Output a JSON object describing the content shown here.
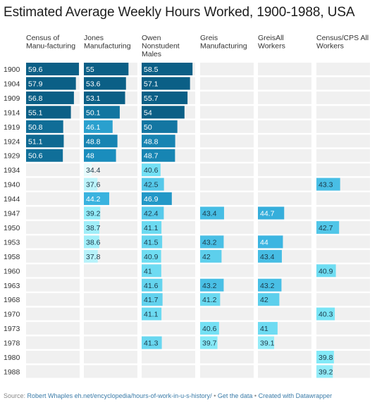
{
  "title": "Estimated Average Weekly Hours Worked, 1900-1988, USA",
  "footer": {
    "source_label": "Source:",
    "source_text": "Robert Whaples eh.net/encyclopedia/hours-of-work-in-u-s-history/",
    "sep1": "•",
    "get_data": "Get the data",
    "sep2": "•",
    "created": "Created with Datawrapper"
  },
  "chart_data": {
    "type": "table",
    "columns": [
      {
        "key": "census_mfg",
        "header": [
          "Census of",
          "Manu-facturing"
        ]
      },
      {
        "key": "jones_mfg",
        "header": [
          "Jones",
          "Manufacturing"
        ]
      },
      {
        "key": "owen_males",
        "header": [
          "Owen",
          "Nonstudent",
          "Males"
        ]
      },
      {
        "key": "greis_mfg",
        "header": [
          "Greis",
          "Manufacturing"
        ]
      },
      {
        "key": "greis_all",
        "header": [
          "GreisAll",
          "Workers"
        ]
      },
      {
        "key": "census_cps",
        "header": [
          "Census/CPS All",
          "Workers"
        ]
      }
    ],
    "years": [
      "1900",
      "1904",
      "1909",
      "1914",
      "1919",
      "1924",
      "1929",
      "1934",
      "1940",
      "1944",
      "1947",
      "1950",
      "1953",
      "1958",
      "1960",
      "1963",
      "1968",
      "1970",
      "1973",
      "1978",
      "1980",
      "1988"
    ],
    "values": [
      [
        59.6,
        55,
        58.5,
        null,
        null,
        null
      ],
      [
        57.9,
        53.6,
        57.1,
        null,
        null,
        null
      ],
      [
        56.8,
        53.1,
        55.7,
        null,
        null,
        null
      ],
      [
        55.1,
        50.1,
        54,
        null,
        null,
        null
      ],
      [
        50.8,
        46.1,
        50,
        null,
        null,
        null
      ],
      [
        51.1,
        48.8,
        48.8,
        null,
        null,
        null
      ],
      [
        50.6,
        48,
        48.7,
        null,
        null,
        null
      ],
      [
        null,
        34.4,
        40.6,
        null,
        null,
        null
      ],
      [
        null,
        37.6,
        42.5,
        null,
        null,
        43.3
      ],
      [
        null,
        44.2,
        46.9,
        null,
        null,
        null
      ],
      [
        null,
        39.2,
        42.4,
        43.4,
        44.7,
        null
      ],
      [
        null,
        38.7,
        41.1,
        null,
        null,
        42.7
      ],
      [
        null,
        38.6,
        41.5,
        43.2,
        44,
        null
      ],
      [
        null,
        37.8,
        40.9,
        42,
        43.4,
        null
      ],
      [
        null,
        null,
        41,
        null,
        null,
        40.9
      ],
      [
        null,
        null,
        41.6,
        43.2,
        43.2,
        null
      ],
      [
        null,
        null,
        41.7,
        41.2,
        42,
        null
      ],
      [
        null,
        null,
        41.1,
        null,
        null,
        40.3
      ],
      [
        null,
        null,
        null,
        40.6,
        41,
        null
      ],
      [
        null,
        null,
        41.3,
        39.7,
        39.1,
        null
      ],
      [
        null,
        null,
        null,
        null,
        null,
        39.8
      ],
      [
        null,
        null,
        null,
        null,
        null,
        39.2
      ]
    ],
    "color_scale": {
      "low": "#e6fbfc",
      "mid_low": "#7ee8f7",
      "mid": "#3cb5e1",
      "mid_high": "#1a8dbd",
      "high": "#0b5f86"
    },
    "empty_cell_color": "#f0f0f0"
  }
}
